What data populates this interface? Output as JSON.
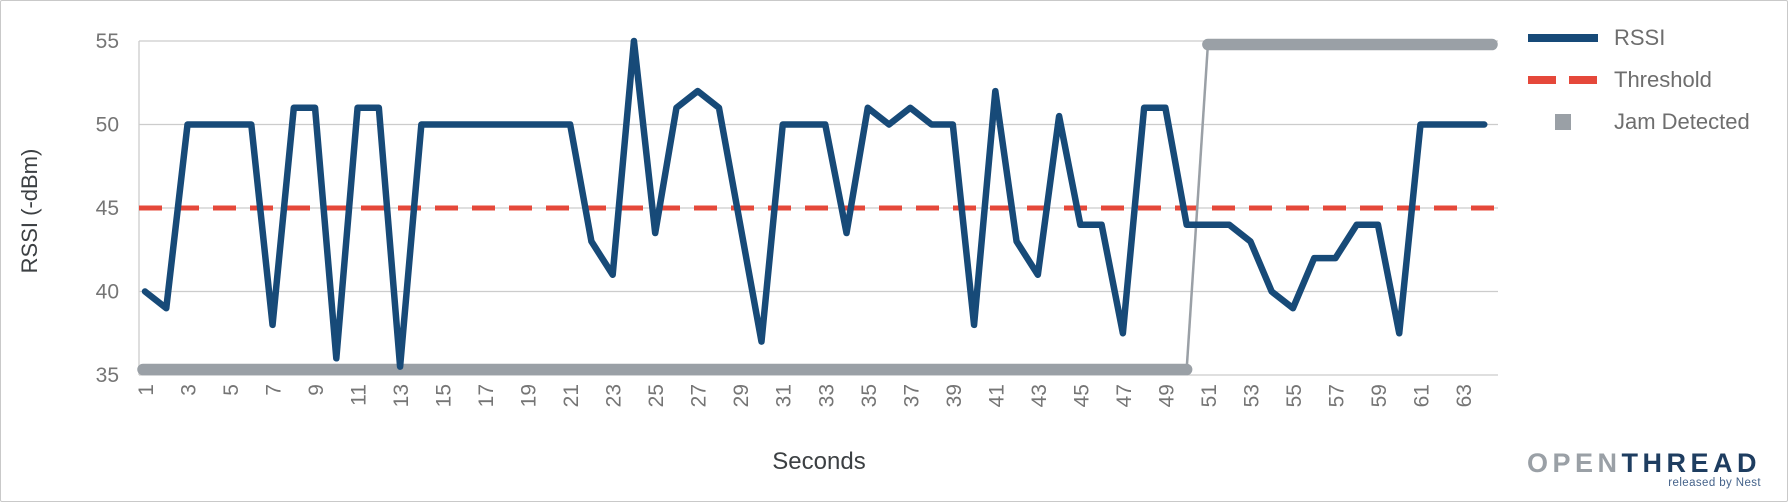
{
  "chart_data": {
    "type": "line",
    "title": "",
    "xlabel": "Seconds",
    "ylabel": "RSSI (-dBm)",
    "xlim": [
      0.7,
      64.7
    ],
    "ylim": [
      35,
      55
    ],
    "grid": true,
    "legend_position": "right",
    "x_tick_labels": [
      1,
      3,
      5,
      7,
      9,
      11,
      13,
      15,
      17,
      19,
      21,
      23,
      25,
      27,
      29,
      31,
      33,
      35,
      37,
      39,
      41,
      43,
      45,
      47,
      49,
      51,
      53,
      55,
      57,
      59,
      61,
      63
    ],
    "y_tick_labels": [
      55,
      50,
      45,
      40,
      35
    ],
    "x": [
      1,
      2,
      3,
      4,
      5,
      6,
      7,
      8,
      9,
      10,
      11,
      12,
      13,
      14,
      15,
      16,
      17,
      18,
      19,
      20,
      21,
      22,
      23,
      24,
      25,
      26,
      27,
      28,
      29,
      30,
      31,
      32,
      33,
      34,
      35,
      36,
      37,
      38,
      39,
      40,
      41,
      42,
      43,
      44,
      45,
      46,
      47,
      48,
      49,
      50,
      51,
      52,
      53,
      54,
      55,
      56,
      57,
      58,
      59,
      60,
      61,
      62,
      63,
      64
    ],
    "series": [
      {
        "name": "RSSI",
        "type": "line",
        "values": [
          40,
          39,
          50,
          50,
          50,
          50,
          38,
          51,
          51,
          36,
          51,
          51,
          35.5,
          50,
          50,
          50,
          50,
          50,
          50,
          50,
          50,
          43,
          41,
          55,
          43.5,
          51,
          52,
          51,
          44,
          37,
          50,
          50,
          50,
          43.5,
          51,
          50,
          51,
          50,
          50,
          38,
          52,
          43,
          41,
          50.5,
          44,
          44,
          37.5,
          51,
          51,
          44,
          44,
          44,
          43,
          40,
          39,
          42,
          42,
          44,
          44,
          37.5,
          50,
          50,
          50,
          50
        ]
      },
      {
        "name": "Threshold",
        "type": "threshold-line",
        "value": 45
      },
      {
        "name": "Jam Detected",
        "type": "status-step",
        "values": [
          35,
          35,
          35,
          35,
          35,
          35,
          35,
          35,
          35,
          35,
          35,
          35,
          35,
          35,
          35,
          35,
          35,
          35,
          35,
          35,
          35,
          35,
          35,
          35,
          35,
          35,
          35,
          35,
          35,
          35,
          35,
          35,
          35,
          35,
          35,
          35,
          35,
          35,
          35,
          35,
          35,
          35,
          35,
          35,
          35,
          35,
          35,
          35,
          35,
          35,
          55,
          55,
          55,
          55,
          55,
          55,
          55,
          55,
          55,
          55,
          55,
          55,
          55,
          55
        ],
        "jam_start_second": 51
      }
    ],
    "colors": {
      "rssi": "#174a78",
      "threshold": "#e5483a",
      "jam": "#9aa0a6",
      "grid": "#cccccc",
      "axis_text": "#757575",
      "title_text": "#3c4043"
    }
  },
  "legend": {
    "items": [
      {
        "label": "RSSI"
      },
      {
        "label": "Threshold"
      },
      {
        "label": "Jam Detected"
      }
    ]
  },
  "branding": {
    "logo_open": "OPEN",
    "logo_thread": "THREAD",
    "tagline": "released by Nest"
  }
}
